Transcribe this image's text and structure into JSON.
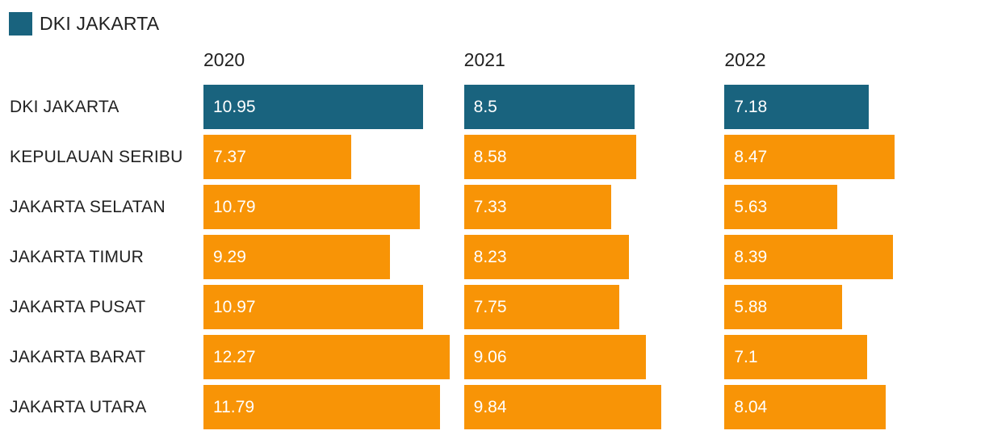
{
  "legend": {
    "label": "DKI JAKARTA",
    "color": "#19637E"
  },
  "colors": {
    "highlight_bar": "#19637E",
    "default_bar": "#F89406",
    "label_text": "#212121",
    "value_text": "#FFFFFF",
    "background": "#FFFFFF"
  },
  "chart_data": {
    "type": "bar",
    "orientation": "horizontal",
    "title": "",
    "legend_entries": [
      {
        "name": "DKI JAKARTA",
        "color": "#19637E"
      }
    ],
    "years": [
      "2020",
      "2021",
      "2022"
    ],
    "rows": [
      {
        "label": "DKI JAKARTA",
        "values": [
          10.95,
          8.5,
          7.18
        ],
        "highlight": true
      },
      {
        "label": "KEPULAUAN SERIBU",
        "values": [
          7.37,
          8.58,
          8.47
        ],
        "highlight": false
      },
      {
        "label": "JAKARTA SELATAN",
        "values": [
          10.79,
          7.33,
          5.63
        ],
        "highlight": false
      },
      {
        "label": "JAKARTA TIMUR",
        "values": [
          9.29,
          8.23,
          8.39
        ],
        "highlight": false
      },
      {
        "label": "JAKARTA PUSAT",
        "values": [
          10.97,
          7.75,
          5.88
        ],
        "highlight": false
      },
      {
        "label": "JAKARTA BARAT",
        "values": [
          12.27,
          9.06,
          7.1
        ],
        "highlight": false
      },
      {
        "label": "JAKARTA UTARA",
        "values": [
          11.79,
          9.84,
          8.04
        ],
        "highlight": false
      }
    ],
    "xlim": [
      0,
      13
    ],
    "bar_colors": {
      "highlight": "#19637E",
      "default": "#F89406"
    },
    "grid": false,
    "legend_position": "top-left"
  }
}
